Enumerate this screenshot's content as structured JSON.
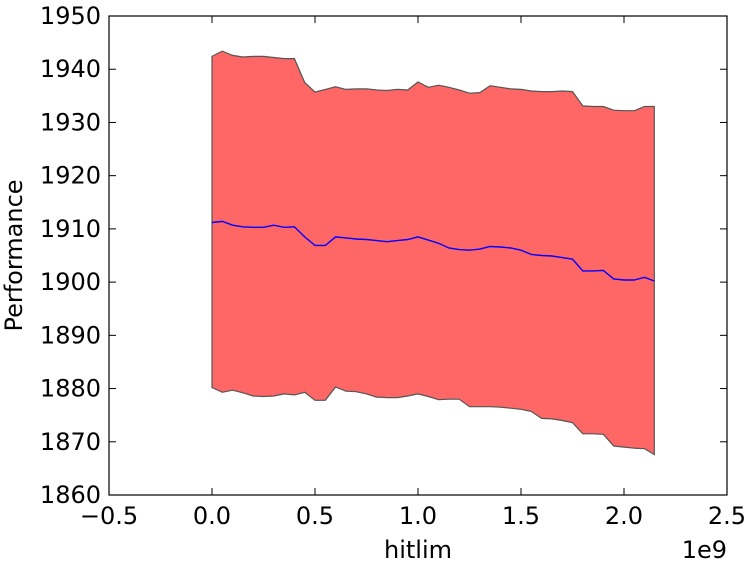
{
  "chart_data": {
    "type": "area",
    "title": "",
    "xlabel": "hitlim",
    "ylabel": "Performance",
    "x_offset_text": "1e9",
    "xlim": [
      -0.5,
      2.5
    ],
    "ylim": [
      1860,
      1950
    ],
    "x_ticks": [
      -0.5,
      0.0,
      0.5,
      1.0,
      1.5,
      2.0,
      2.5
    ],
    "x_tick_labels": [
      "−0.5",
      "0.0",
      "0.5",
      "1.0",
      "1.5",
      "2.0",
      "2.5"
    ],
    "y_ticks": [
      1860,
      1870,
      1880,
      1890,
      1900,
      1910,
      1920,
      1930,
      1940,
      1950
    ],
    "y_tick_labels": [
      "1860",
      "1870",
      "1880",
      "1890",
      "1900",
      "1910",
      "1920",
      "1930",
      "1940",
      "1950"
    ],
    "grid": false,
    "colors": {
      "band": "#ff6666",
      "band_edge": "#555555",
      "mean_line": "#0000ff"
    },
    "x": [
      0.0,
      0.05,
      0.1,
      0.15,
      0.2,
      0.25,
      0.3,
      0.35,
      0.4,
      0.45,
      0.5,
      0.55,
      0.6,
      0.65,
      0.7,
      0.75,
      0.8,
      0.85,
      0.9,
      0.95,
      1.0,
      1.05,
      1.1,
      1.15,
      1.2,
      1.25,
      1.3,
      1.35,
      1.4,
      1.45,
      1.5,
      1.55,
      1.6,
      1.65,
      1.7,
      1.75,
      1.8,
      1.85,
      1.9,
      1.95,
      2.0,
      2.05,
      2.1,
      2.147
    ],
    "series": [
      {
        "name": "",
        "upper": [
          1942.4,
          1943.4,
          1942.6,
          1942.3,
          1942.4,
          1942.4,
          1942.2,
          1942.0,
          1942.0,
          1937.5,
          1935.7,
          1936.2,
          1936.7,
          1936.2,
          1936.3,
          1936.3,
          1936.1,
          1936.0,
          1936.2,
          1936.1,
          1937.6,
          1936.6,
          1937.0,
          1936.6,
          1936.1,
          1935.5,
          1935.6,
          1936.9,
          1936.6,
          1936.3,
          1936.2,
          1935.9,
          1935.8,
          1935.8,
          1935.9,
          1935.8,
          1933.1,
          1933.0,
          1933.0,
          1932.3,
          1932.2,
          1932.2,
          1933.0,
          1933.0
        ],
        "mean": [
          1911.2,
          1911.4,
          1910.7,
          1910.4,
          1910.3,
          1910.3,
          1910.7,
          1910.3,
          1910.4,
          1908.5,
          1906.9,
          1906.9,
          1908.5,
          1908.3,
          1908.1,
          1908.0,
          1907.8,
          1907.6,
          1907.8,
          1908.0,
          1908.5,
          1907.9,
          1907.3,
          1906.4,
          1906.1,
          1906.0,
          1906.2,
          1906.7,
          1906.6,
          1906.4,
          1906.0,
          1905.2,
          1905.0,
          1904.9,
          1904.6,
          1904.3,
          1902.1,
          1902.1,
          1902.2,
          1900.6,
          1900.4,
          1900.4,
          1900.9,
          1900.2
        ],
        "lower": [
          1880.2,
          1879.3,
          1879.7,
          1879.2,
          1878.6,
          1878.5,
          1878.6,
          1879.0,
          1878.8,
          1879.3,
          1877.8,
          1877.8,
          1880.3,
          1879.5,
          1879.4,
          1879.0,
          1878.4,
          1878.3,
          1878.3,
          1878.6,
          1879.0,
          1878.5,
          1877.9,
          1878.0,
          1878.0,
          1876.6,
          1876.6,
          1876.6,
          1876.5,
          1876.3,
          1876.1,
          1875.7,
          1874.4,
          1874.3,
          1874.0,
          1873.6,
          1871.5,
          1871.5,
          1871.4,
          1869.2,
          1869.0,
          1868.8,
          1868.7,
          1867.6
        ]
      }
    ]
  }
}
